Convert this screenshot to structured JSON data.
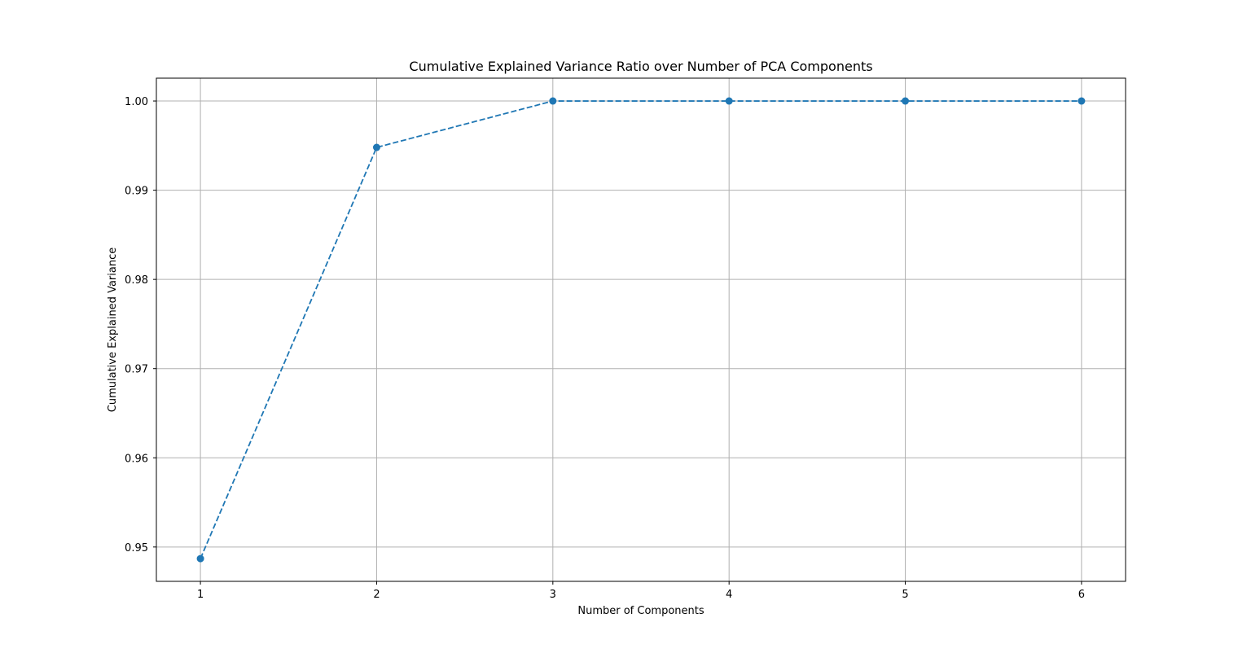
{
  "chart_data": {
    "type": "line",
    "title": "Cumulative Explained Variance Ratio over Number of PCA Components",
    "xlabel": "Number of Components",
    "ylabel": "Cumulative Explained Variance",
    "x": [
      1,
      2,
      3,
      4,
      5,
      6
    ],
    "series": [
      {
        "values": [
          0.9487,
          0.9948,
          1.0,
          1.0,
          1.0,
          1.0
        ],
        "color": "#1f77b4",
        "line_style": "dashed",
        "marker": "circle"
      }
    ],
    "xlim": [
      0.75,
      6.25
    ],
    "ylim": [
      0.94615,
      1.00256
    ],
    "x_ticks": [
      1,
      2,
      3,
      4,
      5,
      6
    ],
    "x_tick_labels": [
      "1",
      "2",
      "3",
      "4",
      "5",
      "6"
    ],
    "y_ticks": [
      0.95,
      0.96,
      0.97,
      0.98,
      0.99,
      1.0
    ],
    "y_tick_labels": [
      "0.95",
      "0.96",
      "0.97",
      "0.98",
      "0.99",
      "1.00"
    ],
    "grid": true,
    "grid_color": "#b0b0b0",
    "legend": false
  }
}
